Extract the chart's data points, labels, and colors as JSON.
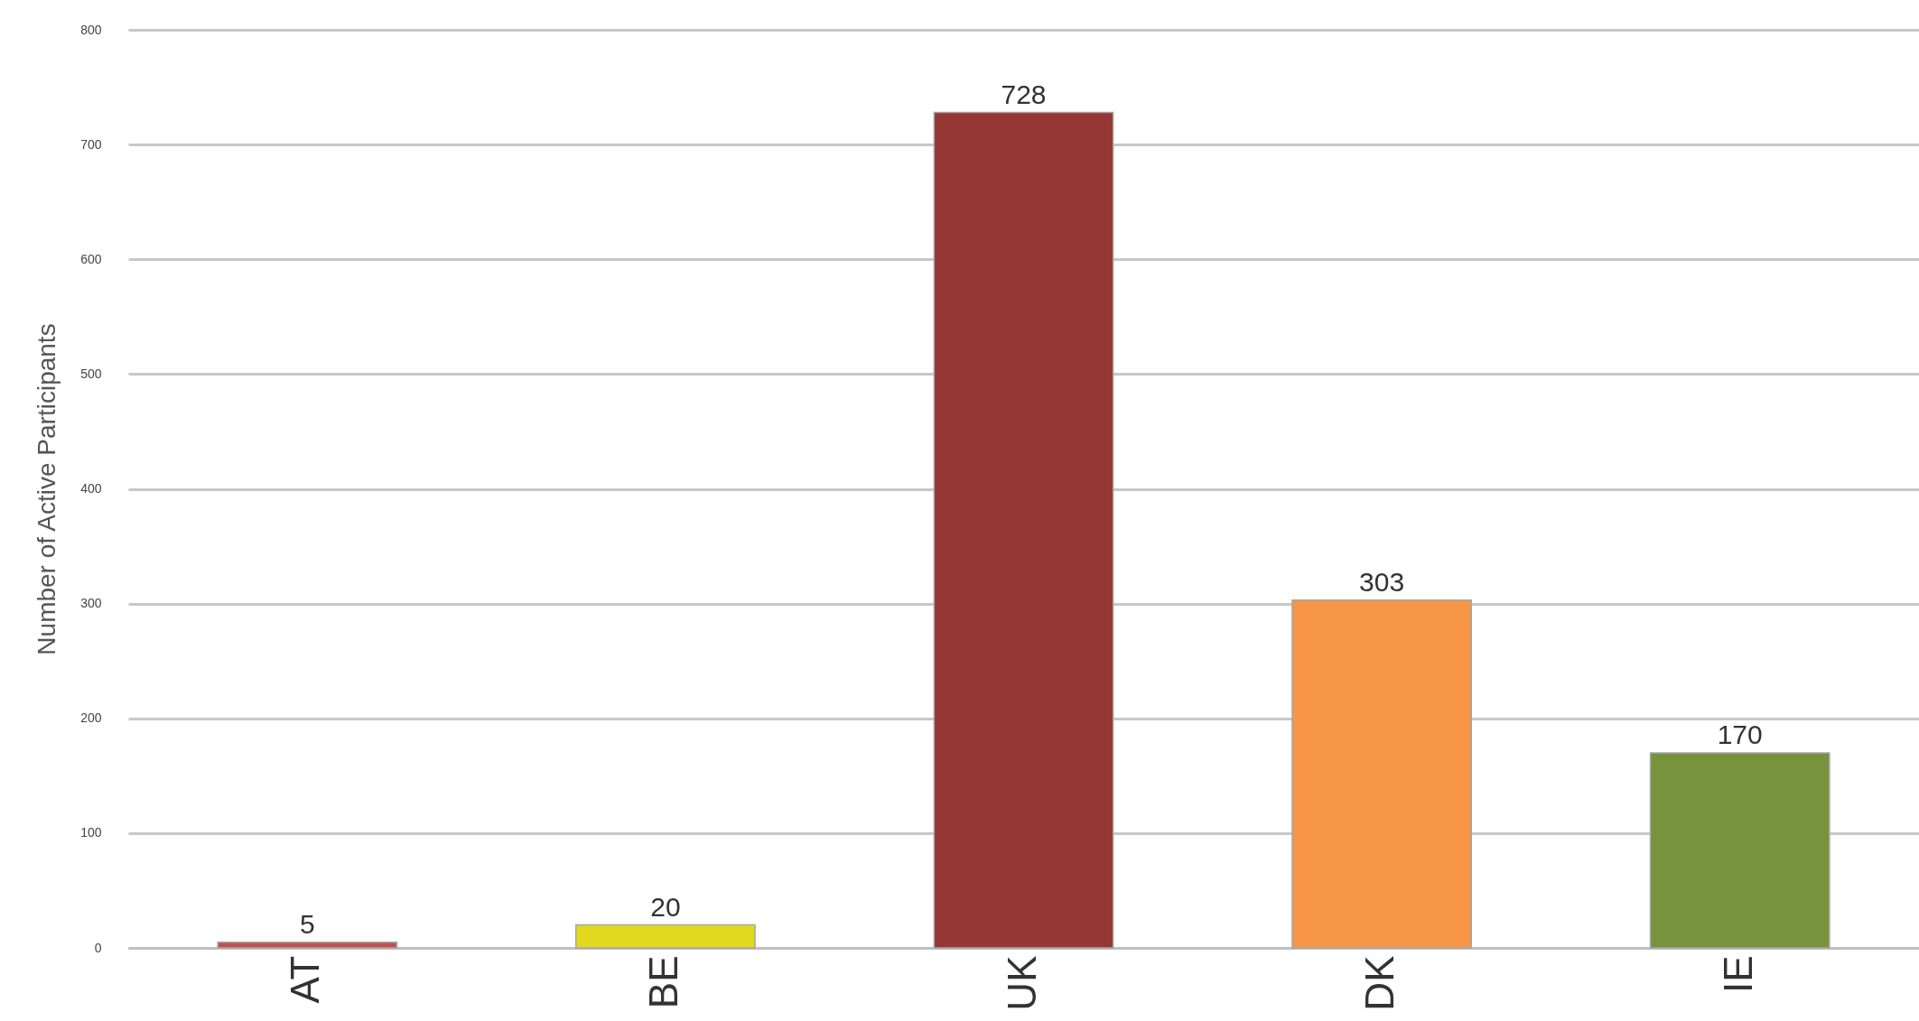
{
  "chart_data": {
    "type": "bar",
    "ylabel": "Number of Active Participants",
    "categories": [
      "AT",
      "BE",
      "UK",
      "DK",
      "IE"
    ],
    "values": [
      5,
      20,
      728,
      303,
      170
    ],
    "colors": [
      "#c0504d",
      "#e2d91e",
      "#953735",
      "#f79646",
      "#77933c"
    ],
    "ylim": [
      0,
      800
    ],
    "yticks": [
      0,
      100,
      200,
      300,
      400,
      500,
      600,
      700,
      800
    ],
    "grid": "y",
    "data_labels": true
  }
}
